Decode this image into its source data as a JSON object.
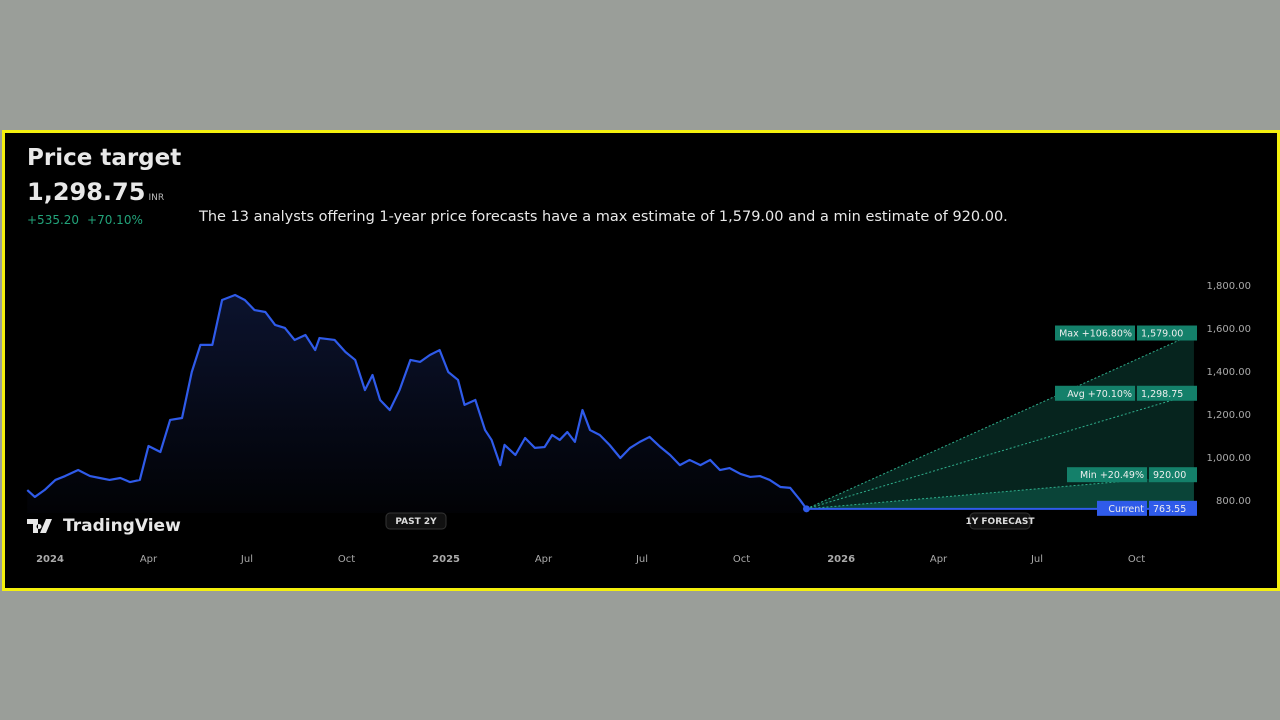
{
  "header": {
    "title": "Price target",
    "price": "1,298.75",
    "currency": "INR",
    "change_abs": "+535.20",
    "change_pct": "+70.10%"
  },
  "description": "The 13 analysts offering 1-year price forecasts have a max estimate of 1,579.00 and a min estimate of 920.00.",
  "brand": "TradingView",
  "colors": {
    "line": "#2f5bea",
    "forecast": "#14806a",
    "current": "#2f5bea",
    "up": "#22a37a",
    "frame": "#f4f00e"
  },
  "chart_data": {
    "type": "line",
    "ylim": [
      760,
      1800
    ],
    "y_ticks": [
      "1,800.00",
      "1,600.00",
      "1,400.00",
      "1,200.00",
      "1,000.00",
      "800.00"
    ],
    "y_tick_values": [
      1800,
      1600,
      1400,
      1200,
      1000,
      800
    ],
    "x_ticks": [
      {
        "label": "2024",
        "date": "2024-01-01"
      },
      {
        "label": "Apr",
        "date": "2024-04-01"
      },
      {
        "label": "Jul",
        "date": "2024-07-01"
      },
      {
        "label": "Oct",
        "date": "2024-10-01"
      },
      {
        "label": "2025",
        "date": "2025-01-01"
      },
      {
        "label": "Apr",
        "date": "2025-04-01"
      },
      {
        "label": "Jul",
        "date": "2025-07-01"
      },
      {
        "label": "Oct",
        "date": "2025-10-01"
      },
      {
        "label": "2026",
        "date": "2026-01-01"
      },
      {
        "label": "Apr",
        "date": "2026-04-01"
      },
      {
        "label": "Jul",
        "date": "2026-07-01"
      },
      {
        "label": "Oct",
        "date": "2026-10-01"
      }
    ],
    "period_labels": {
      "past": "PAST 2Y",
      "forecast": "1Y FORECAST"
    },
    "series": [
      {
        "points": [
          [
            "2023-12-11",
            851
          ],
          [
            "2023-12-18",
            819
          ],
          [
            "2023-12-27",
            851
          ],
          [
            "2024-01-06",
            898
          ],
          [
            "2024-01-15",
            916
          ],
          [
            "2024-01-27",
            944
          ],
          [
            "2024-02-07",
            916
          ],
          [
            "2024-02-16",
            907
          ],
          [
            "2024-02-25",
            898
          ],
          [
            "2024-03-06",
            907
          ],
          [
            "2024-03-15",
            888
          ],
          [
            "2024-03-24",
            898
          ],
          [
            "2024-04-01",
            1056
          ],
          [
            "2024-04-12",
            1028
          ],
          [
            "2024-04-21",
            1177
          ],
          [
            "2024-05-02",
            1186
          ],
          [
            "2024-05-11",
            1400
          ],
          [
            "2024-05-19",
            1526
          ],
          [
            "2024-05-30",
            1526
          ],
          [
            "2024-06-08",
            1735
          ],
          [
            "2024-06-20",
            1758
          ],
          [
            "2024-06-29",
            1735
          ],
          [
            "2024-07-08",
            1688
          ],
          [
            "2024-07-18",
            1679
          ],
          [
            "2024-07-27",
            1619
          ],
          [
            "2024-08-05",
            1605
          ],
          [
            "2024-08-14",
            1549
          ],
          [
            "2024-08-24",
            1572
          ],
          [
            "2024-09-02",
            1502
          ],
          [
            "2024-09-06",
            1558
          ],
          [
            "2024-09-20",
            1549
          ],
          [
            "2024-09-30",
            1493
          ],
          [
            "2024-10-09",
            1456
          ],
          [
            "2024-10-18",
            1316
          ],
          [
            "2024-10-25",
            1386
          ],
          [
            "2024-11-01",
            1270
          ],
          [
            "2024-11-10",
            1223
          ],
          [
            "2024-11-19",
            1316
          ],
          [
            "2024-11-29",
            1456
          ],
          [
            "2024-12-08",
            1447
          ],
          [
            "2024-12-17",
            1479
          ],
          [
            "2024-12-26",
            1502
          ],
          [
            "2025-01-03",
            1400
          ],
          [
            "2025-01-12",
            1363
          ],
          [
            "2025-01-18",
            1247
          ],
          [
            "2025-01-28",
            1270
          ],
          [
            "2025-02-06",
            1130
          ],
          [
            "2025-02-12",
            1084
          ],
          [
            "2025-02-20",
            967
          ],
          [
            "2025-02-24",
            1061
          ],
          [
            "2025-03-06",
            1014
          ],
          [
            "2025-03-15",
            1093
          ],
          [
            "2025-03-24",
            1047
          ],
          [
            "2025-04-02",
            1051
          ],
          [
            "2025-04-09",
            1107
          ],
          [
            "2025-04-16",
            1084
          ],
          [
            "2025-04-23",
            1121
          ],
          [
            "2025-04-30",
            1075
          ],
          [
            "2025-05-07",
            1223
          ],
          [
            "2025-05-14",
            1130
          ],
          [
            "2025-05-23",
            1107
          ],
          [
            "2025-06-01",
            1061
          ],
          [
            "2025-06-11",
            1000
          ],
          [
            "2025-06-20",
            1047
          ],
          [
            "2025-06-29",
            1075
          ],
          [
            "2025-07-08",
            1098
          ],
          [
            "2025-07-18",
            1051
          ],
          [
            "2025-07-27",
            1014
          ],
          [
            "2025-08-05",
            967
          ],
          [
            "2025-08-14",
            991
          ],
          [
            "2025-08-24",
            967
          ],
          [
            "2025-09-02",
            991
          ],
          [
            "2025-09-11",
            944
          ],
          [
            "2025-09-20",
            953
          ],
          [
            "2025-09-30",
            926
          ],
          [
            "2025-10-09",
            912
          ],
          [
            "2025-10-18",
            916
          ],
          [
            "2025-10-27",
            898
          ],
          [
            "2025-11-06",
            865
          ],
          [
            "2025-11-15",
            861
          ],
          [
            "2025-11-24",
            805
          ],
          [
            "2025-11-30",
            763.55
          ]
        ]
      }
    ],
    "forecast": {
      "start_date": "2025-11-30",
      "end_date": "2026-11-23",
      "current": 763.55,
      "max": 1579.0,
      "avg": 1298.75,
      "min": 920.0,
      "labels": {
        "max": "Max +106.80%",
        "avg": "Avg +70.10%",
        "min": "Min +20.49%",
        "current": "Current"
      },
      "values_text": {
        "max": "1,579.00",
        "avg": "1,298.75",
        "min": "920.00",
        "current": "763.55"
      }
    }
  }
}
